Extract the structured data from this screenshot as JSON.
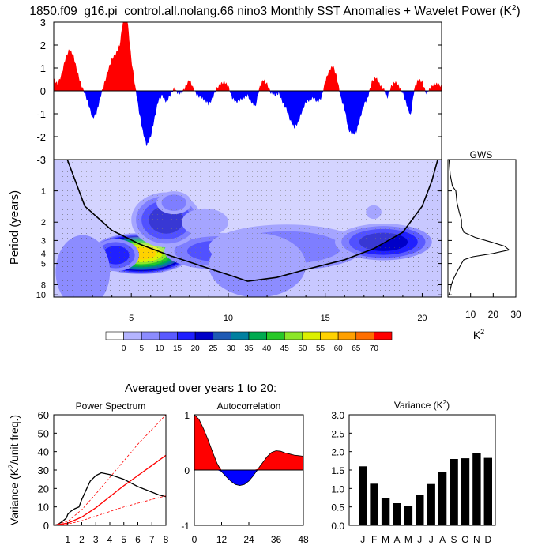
{
  "title": "1850.f09_g16.pi_control.all.nolang.66 nino3 Monthly SST Anomalies + Wavelet Power (K",
  "title_sup": "2",
  "title_close": ")",
  "subtitle": "Averaged over years 1 to 20:",
  "chart_data": [
    {
      "type": "area",
      "name": "sst-anomaly-timeseries",
      "ylim": [
        -3,
        3
      ],
      "yticks": [
        "3",
        "2",
        "1",
        "0",
        "-1",
        "-2",
        "-3"
      ],
      "xlim": [
        1,
        21
      ],
      "colors": {
        "positive": "#ff0000",
        "negative": "#0000ff"
      },
      "x": [
        1,
        1.2,
        1.4,
        1.6,
        1.8,
        2,
        2.2,
        2.4,
        2.6,
        2.8,
        3,
        3.2,
        3.4,
        3.6,
        3.8,
        4,
        4.2,
        4.4,
        4.6,
        4.8,
        5,
        5.2,
        5.4,
        5.6,
        5.8,
        6,
        6.2,
        6.4,
        6.6,
        6.8,
        7,
        7.2,
        7.4,
        7.6,
        7.8,
        8,
        8.2,
        8.4,
        8.6,
        8.8,
        9,
        9.2,
        9.4,
        9.6,
        9.8,
        10,
        10.2,
        10.4,
        10.6,
        10.8,
        11,
        11.2,
        11.4,
        11.6,
        11.8,
        12,
        12.2,
        12.4,
        12.6,
        12.8,
        13,
        13.2,
        13.4,
        13.6,
        13.8,
        14,
        14.2,
        14.4,
        14.6,
        14.8,
        15,
        15.2,
        15.4,
        15.6,
        15.8,
        16,
        16.2,
        16.4,
        16.6,
        16.8,
        17,
        17.2,
        17.4,
        17.6,
        17.8,
        18,
        18.2,
        18.4,
        18.6,
        18.8,
        19,
        19.2,
        19.4,
        19.6,
        19.8,
        20,
        20.2,
        20.4,
        20.6,
        20.8,
        21
      ],
      "values": [
        0.5,
        0.3,
        0.7,
        1.4,
        1.8,
        1.6,
        0.9,
        0.3,
        -0.1,
        -0.6,
        -1.2,
        -1.0,
        -0.3,
        0.3,
        0.9,
        1.4,
        1.6,
        2.0,
        3.2,
        3.1,
        1.4,
        0.2,
        -0.9,
        -1.8,
        -2.4,
        -2.0,
        -1.2,
        -0.4,
        -0.2,
        -0.5,
        -0.2,
        0.1,
        -0.1,
        -0.1,
        0.2,
        0.5,
        0.1,
        -0.2,
        -0.3,
        -0.4,
        -0.6,
        -0.3,
        0.1,
        0.3,
        0.4,
        0.2,
        -0.3,
        -0.5,
        -0.4,
        -0.3,
        -0.2,
        -0.5,
        -0.7,
        0.1,
        0.5,
        0.3,
        -0.1,
        -0.2,
        -0.1,
        -0.5,
        -0.8,
        -1.3,
        -1.6,
        -1.4,
        -0.9,
        -0.5,
        -0.4,
        -0.3,
        -0.5,
        -0.3,
        0.4,
        0.9,
        1.1,
        0.6,
        -0.3,
        -0.8,
        -1.7,
        -1.9,
        -1.8,
        -1.2,
        -0.6,
        -0.3,
        0.4,
        0.6,
        0.3,
        0.1,
        -0.3,
        0.2,
        0.4,
        0.2,
        -0.1,
        -0.6,
        -1.1,
        0.1,
        0.5,
        0.4,
        -0.1,
        0.1,
        0.3,
        0.3,
        0.2
      ]
    },
    {
      "type": "heatmap",
      "name": "wavelet-power",
      "ylabel": "Period (years)",
      "yticks": [
        1,
        2,
        3,
        4,
        5,
        8,
        10
      ],
      "ylim": [
        0.5,
        10.5
      ],
      "xticks": [
        5,
        10,
        15,
        20
      ],
      "xlim": [
        1,
        21
      ],
      "cone_of_influence": {
        "x": [
          1,
          1.7,
          2.6,
          4.0,
          5.5,
          7.0,
          8.5,
          10.0,
          11.0,
          12.5,
          14.0,
          16.0,
          17.5,
          19.0,
          20.0,
          20.5,
          20.8
        ],
        "period": [
          0.5,
          0.5,
          1.4,
          2.4,
          3.3,
          4.2,
          5.2,
          6.4,
          7.4,
          6.8,
          5.7,
          4.6,
          3.6,
          2.5,
          1.4,
          0.8,
          0.5
        ]
      },
      "blobs": [
        {
          "x": 5.5,
          "period": 4.0,
          "sx": 2.6,
          "sy": 0.45,
          "power": 58
        },
        {
          "x": 4.2,
          "period": 4.15,
          "sx": 1.2,
          "sy": 0.35,
          "power": 18
        },
        {
          "x": 9.5,
          "period": 3.8,
          "sx": 2.8,
          "sy": 0.4,
          "power": 18
        },
        {
          "x": 13.0,
          "period": 3.5,
          "sx": 4.0,
          "sy": 0.5,
          "power": 14
        },
        {
          "x": 18.0,
          "period": 3.1,
          "sx": 2.5,
          "sy": 0.4,
          "power": 20
        },
        {
          "x": 6.8,
          "period": 1.9,
          "sx": 1.8,
          "sy": 0.6,
          "power": 22
        },
        {
          "x": 7.2,
          "period": 1.3,
          "sx": 0.9,
          "sy": 0.25,
          "power": 10
        },
        {
          "x": 8.8,
          "period": 2.0,
          "sx": 1.2,
          "sy": 0.3,
          "power": 8
        },
        {
          "x": 2.5,
          "period": 6.0,
          "sx": 1.4,
          "sy": 0.8,
          "power": 6
        },
        {
          "x": 11.5,
          "period": 5.2,
          "sx": 2.5,
          "sy": 0.7,
          "power": 5
        },
        {
          "x": 17.5,
          "period": 1.6,
          "sx": 0.4,
          "sy": 0.15,
          "power": 8
        }
      ],
      "colorbar": {
        "labels": [
          "0",
          "5",
          "10",
          "15",
          "20",
          "25",
          "30",
          "35",
          "40",
          "45",
          "50",
          "55",
          "60",
          "65",
          "70"
        ],
        "colors": [
          "#ffffff",
          "#b4b4ff",
          "#8c8cff",
          "#5a5aff",
          "#2020ff",
          "#0000c8",
          "#1e5ab4",
          "#0080a0",
          "#00aa50",
          "#28c828",
          "#8ce628",
          "#dcf000",
          "#ffd200",
          "#ffa000",
          "#ff6e00",
          "#ff0000"
        ]
      }
    },
    {
      "type": "line",
      "name": "global-wavelet-spectrum",
      "title": "GWS",
      "xlabel": "K",
      "xlabel_sup": "2",
      "xticks": [
        "10",
        "20",
        "30"
      ],
      "xlim": [
        0,
        30
      ],
      "period": [
        0.5,
        0.7,
        0.9,
        1.0,
        1.3,
        1.6,
        1.9,
        2.2,
        2.5,
        2.8,
        3.1,
        3.4,
        3.7,
        4.0,
        4.3,
        4.6,
        5.0,
        5.5,
        6.0,
        7.0,
        8.0,
        9.0,
        10.0
      ],
      "values": [
        0.5,
        1.0,
        2.0,
        3.5,
        4.0,
        5.0,
        6.0,
        6.0,
        7.0,
        12.0,
        19.0,
        25.0,
        27.0,
        20.0,
        11.0,
        7.0,
        6.0,
        5.0,
        4.0,
        2.5,
        1.5,
        1.0,
        0.5
      ]
    },
    {
      "type": "line",
      "name": "power-spectrum",
      "title": "Power Spectrum",
      "ylabel": "Variance (K",
      "ylabel_sup": "2",
      "ylabel_close": "/unit freq.)",
      "xticks": [
        "1",
        "2",
        "3",
        "4",
        "5",
        "6",
        "7",
        "8"
      ],
      "xlim": [
        0,
        8
      ],
      "yticks": [
        "0",
        "10",
        "20",
        "30",
        "40",
        "50",
        "60"
      ],
      "ylim": [
        0,
        60
      ],
      "series": [
        {
          "name": "spectrum",
          "color": "#000000",
          "style": "solid",
          "x": [
            0,
            0.3,
            0.6,
            0.9,
            1.0,
            1.2,
            1.5,
            1.8,
            2.0,
            2.3,
            2.6,
            3.0,
            3.4,
            4.0,
            4.6,
            5.0,
            5.5,
            6.0,
            6.5,
            7.0,
            7.5,
            8.0
          ],
          "y": [
            0,
            0.5,
            2,
            4,
            6,
            7.5,
            9,
            10,
            14,
            19,
            24,
            27,
            28.5,
            27.5,
            26,
            25,
            23,
            21,
            19.5,
            18,
            16.5,
            15.5
          ]
        },
        {
          "name": "red-noise",
          "color": "#ff0000",
          "style": "solid",
          "x": [
            0,
            1,
            2,
            3,
            4,
            5,
            6,
            7,
            8
          ],
          "y": [
            0,
            1.2,
            4.5,
            9.5,
            15.5,
            21.5,
            27,
            32.5,
            38
          ]
        },
        {
          "name": "upper-bound",
          "color": "#ff0000",
          "style": "dashed",
          "x": [
            0,
            1,
            2,
            3,
            4,
            5,
            6,
            7,
            8
          ],
          "y": [
            0,
            2.2,
            8.5,
            17,
            26,
            35,
            44,
            52,
            60
          ]
        },
        {
          "name": "lower-bound",
          "color": "#ff0000",
          "style": "dashed",
          "x": [
            0,
            1,
            2,
            3,
            4,
            5,
            6,
            7,
            8
          ],
          "y": [
            0,
            0.7,
            2.5,
            5,
            7.5,
            10,
            12,
            14,
            16
          ]
        }
      ]
    },
    {
      "type": "area",
      "name": "autocorrelation",
      "title": "Autocorrelation",
      "xticks": [
        "0",
        "12",
        "24",
        "36",
        "48"
      ],
      "xlim": [
        0,
        48
      ],
      "yticks": [
        "1",
        "0",
        "-1"
      ],
      "ylim": [
        -1,
        1
      ],
      "lag": [
        0,
        2,
        4,
        6,
        8,
        10,
        12,
        14,
        16,
        18,
        20,
        22,
        24,
        26,
        28,
        30,
        32,
        34,
        36,
        38,
        40,
        42,
        44,
        46,
        48
      ],
      "values": [
        1.0,
        0.92,
        0.75,
        0.55,
        0.33,
        0.12,
        -0.03,
        -0.12,
        -0.2,
        -0.26,
        -0.28,
        -0.26,
        -0.2,
        -0.1,
        0.02,
        0.13,
        0.24,
        0.32,
        0.35,
        0.34,
        0.31,
        0.29,
        0.27,
        0.26,
        0.25
      ],
      "colors": {
        "positive": "#ff0000",
        "negative": "#0000ff"
      }
    },
    {
      "type": "bar",
      "name": "monthly-variance",
      "title": "Variance (K",
      "title_sup": "2",
      "title_close": ")",
      "categories": [
        "J",
        "F",
        "M",
        "A",
        "M",
        "J",
        "J",
        "A",
        "S",
        "O",
        "N",
        "D"
      ],
      "values": [
        1.6,
        1.13,
        0.75,
        0.6,
        0.52,
        0.82,
        1.12,
        1.45,
        1.8,
        1.82,
        1.95,
        1.83
      ],
      "yticks": [
        "0.0",
        "0.5",
        "1.0",
        "1.5",
        "2.0",
        "2.5",
        "3.0"
      ],
      "ylim": [
        0,
        3
      ]
    }
  ]
}
